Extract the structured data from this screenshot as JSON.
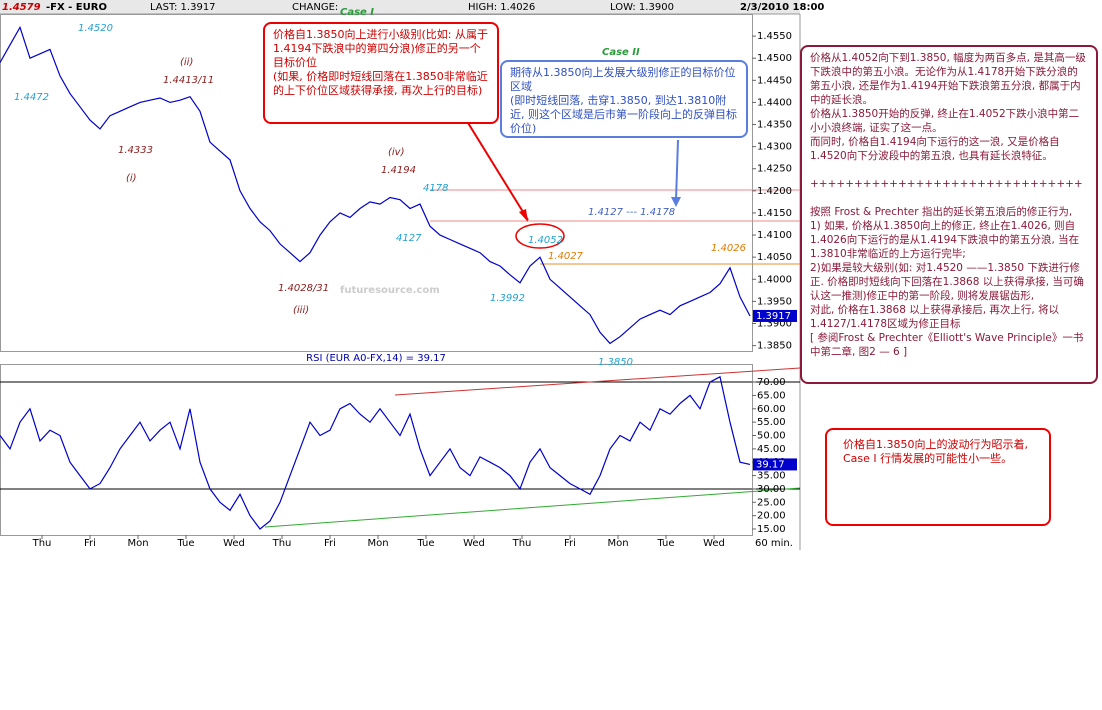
{
  "header": {
    "hi": "1.4579",
    "symbol": "-FX - EURO",
    "last": "LAST: 1.3917",
    "change": "CHANGE:",
    "high": "HIGH: 1.4026",
    "low": "LOW: 1.3900",
    "date": "2/3/2010 18:00"
  },
  "chart_data": [
    {
      "type": "line",
      "color": "#0000cc",
      "values": [
        1.449,
        1.453,
        1.457,
        1.45,
        1.451,
        1.452,
        1.446,
        1.442,
        1.439,
        1.436,
        1.434,
        1.437,
        1.438,
        1.439,
        1.44,
        1.4405,
        1.441,
        1.44,
        1.4405,
        1.4413,
        1.438,
        1.431,
        1.429,
        1.427,
        1.42,
        1.416,
        1.413,
        1.411,
        1.408,
        1.406,
        1.404,
        1.406,
        1.41,
        1.413,
        1.415,
        1.414,
        1.416,
        1.4175,
        1.417,
        1.4185,
        1.418,
        1.416,
        1.417,
        1.412,
        1.41,
        1.409,
        1.408,
        1.407,
        1.406,
        1.404,
        1.403,
        1.401,
        1.3992,
        1.403,
        1.405,
        1.4,
        1.398,
        1.396,
        1.394,
        1.392,
        1.388,
        1.3855,
        1.387,
        1.389,
        1.391,
        1.392,
        1.393,
        1.392,
        1.394,
        1.395,
        1.396,
        1.397,
        1.399,
        1.4026,
        1.396,
        1.3917
      ],
      "ylim": [
        1.384,
        1.46
      ],
      "yticks": [
        {
          "value": 1.385,
          "label": "1.3850"
        },
        {
          "value": 1.39,
          "label": "1.3900"
        },
        {
          "value": 1.395,
          "label": "1.3950"
        },
        {
          "value": 1.4,
          "label": "1.4000"
        },
        {
          "value": 1.405,
          "label": "1.4050"
        },
        {
          "value": 1.41,
          "label": "1.4100"
        },
        {
          "value": 1.415,
          "label": "1.4150"
        },
        {
          "value": 1.42,
          "label": "1.4200"
        },
        {
          "value": 1.425,
          "label": "1.4250"
        },
        {
          "value": 1.43,
          "label": "1.4300"
        },
        {
          "value": 1.435,
          "label": "1.4350"
        },
        {
          "value": 1.44,
          "label": "1.4400"
        },
        {
          "value": 1.445,
          "label": "1.4450"
        },
        {
          "value": 1.45,
          "label": "1.4500"
        },
        {
          "value": 1.455,
          "label": "1.4550"
        }
      ],
      "last_label": "1.3917"
    },
    {
      "type": "line",
      "title": "RSI (EUR A0-FX,14) = 39.17",
      "color": "#0000cc",
      "values": [
        50,
        45,
        55,
        60,
        48,
        52,
        50,
        40,
        35,
        30,
        32,
        38,
        45,
        50,
        55,
        48,
        52,
        55,
        45,
        60,
        40,
        30,
        25,
        22,
        28,
        20,
        15,
        18,
        25,
        35,
        45,
        55,
        50,
        52,
        60,
        62,
        58,
        55,
        60,
        55,
        50,
        58,
        45,
        35,
        40,
        45,
        38,
        35,
        42,
        40,
        38,
        35,
        30,
        40,
        45,
        38,
        35,
        32,
        30,
        28,
        35,
        45,
        50,
        48,
        55,
        52,
        60,
        58,
        62,
        65,
        60,
        70,
        72,
        55,
        40,
        39.17
      ],
      "ylim": [
        12.75,
        76.4
      ],
      "yticks": [
        {
          "value": 15,
          "label": "15.00"
        },
        {
          "value": 20,
          "label": "20.00"
        },
        {
          "value": 25,
          "label": "25.00"
        },
        {
          "value": 30,
          "label": "30.00"
        },
        {
          "value": 35,
          "label": "35.00"
        },
        {
          "value": 40,
          "label": "40.00"
        },
        {
          "value": 45,
          "label": "45.00"
        },
        {
          "value": 50,
          "label": "50.00"
        },
        {
          "value": 55,
          "label": "55.00"
        },
        {
          "value": 60,
          "label": "60.00"
        },
        {
          "value": 65,
          "label": "65.00"
        },
        {
          "value": 70,
          "label": "70.00"
        }
      ],
      "last_label": "39.17"
    }
  ],
  "x_axis": {
    "categories": [
      "Thu",
      "Fri",
      "Mon",
      "Tue",
      "Wed",
      "Thu",
      "Fri",
      "Mon",
      "Tue",
      "Wed",
      "Thu",
      "Fri",
      "Mon",
      "Tue",
      "Wed"
    ],
    "unit": "60 min."
  },
  "annotations": [
    "1.4520",
    "1.4472",
    "(ii)",
    "1.4413/11",
    "1.4333",
    "(i)",
    "(iv)",
    "1.4194",
    "4178",
    "4127",
    "1.4028/31",
    "(iii)",
    "1.4052",
    "1.4027",
    "1.3992",
    "1.4026",
    "1.3850",
    "1.4127 --- 1.4178"
  ],
  "watermark": "futuresource.com",
  "notes": {
    "case1_title": "Case I",
    "case1": [
      "价格自1.3850向上进行小级别(比如: 从属于1.4194下跌浪中的第四分浪)修正的另一个目标价位",
      "(如果, 价格即时短线回落在1.3850非常临近的上下价位区域获得承接, 再次上行的目标)"
    ],
    "case2_title": "Case II",
    "case2": [
      "期待从1.3850向上发展大级别修正的目标价位区域",
      "(即时短线回落, 击穿1.3850, 到达1.3810附近, 则这个区域是后市第一阶段向上的反弹目标价位)"
    ],
    "analysis": [
      "价格从1.4052向下到1.3850, 幅度为两百多点, 是其高一级下跌浪中的第五小浪。无论作为从1.4178开始下跌分浪的第五小浪, 还是作为1.4194开始下跌浪第五分浪, 都属于内中的延长浪。",
      "价格从1.3850开始的反弹, 终止在1.4052下跌小浪中第二小小浪终端, 证实了这一点。",
      "而同时, 价格自1.4194向下运行的这一浪, 又是价格自1.4520向下分波段中的第五浪, 也具有延长浪特征。",
      "+++++++++++++++++++++++++++++++",
      "按照 Frost & Prechter 指出的延长第五浪后的修正行为,",
      "1) 如果, 价格从1.3850向上的修正, 终止在1.4026, 则自1.4026向下运行的是从1.4194下跌浪中的第五分浪, 当在1.3810非常临近的上方运行完毕;",
      "2)如果是较大级别(如: 对1.4520 ——1.3850 下跌进行修正. 价格即时短线向下回落在1.3868 以上获得承接, 当可确认这一推测)修正中的第一阶段, 则将发展锯齿形,",
      "对此, 价格在1.3868 以上获得承接后, 再次上行, 将以1.4127/1.4178区域为修正目标",
      "[ 参阅Frost & Prechter《Elliott's Wave Principle》一书中第二章, 图2 — 6 ]"
    ],
    "conclusion": "价格自1.3850向上的波动行为昭示着, Case I 行情发展的可能性小一些。"
  }
}
